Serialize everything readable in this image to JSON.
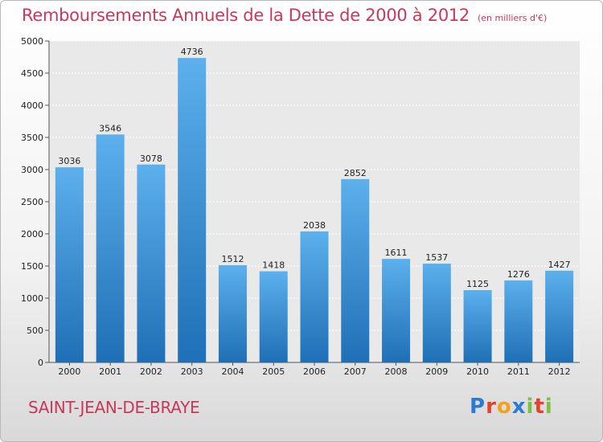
{
  "header": {
    "title": "Remboursements Annuels de la Dette de 2000 à 2012",
    "unit": "(en milliers d'€)"
  },
  "footer": {
    "city": "SAINT-JEAN-DE-BRAYE",
    "logo": "Proxiti"
  },
  "colors": {
    "title": "#c8385a",
    "bar_top": "#5cb0ec",
    "bar_bottom": "#1f6fb6"
  },
  "chart_data": {
    "type": "bar",
    "title": "Remboursements Annuels de la Dette de 2000 à 2012",
    "subtitle": "(en milliers d'€)",
    "categories": [
      "2000",
      "2001",
      "2002",
      "2003",
      "2004",
      "2005",
      "2006",
      "2007",
      "2008",
      "2009",
      "2010",
      "2011",
      "2012"
    ],
    "values": [
      3036,
      3546,
      3078,
      4736,
      1512,
      1418,
      2038,
      2852,
      1611,
      1537,
      1125,
      1276,
      1427
    ],
    "ylim": [
      0,
      5000
    ],
    "yticks": [
      0,
      500,
      1000,
      1500,
      2000,
      2500,
      3000,
      3500,
      4000,
      4500,
      5000
    ],
    "grid": true
  }
}
